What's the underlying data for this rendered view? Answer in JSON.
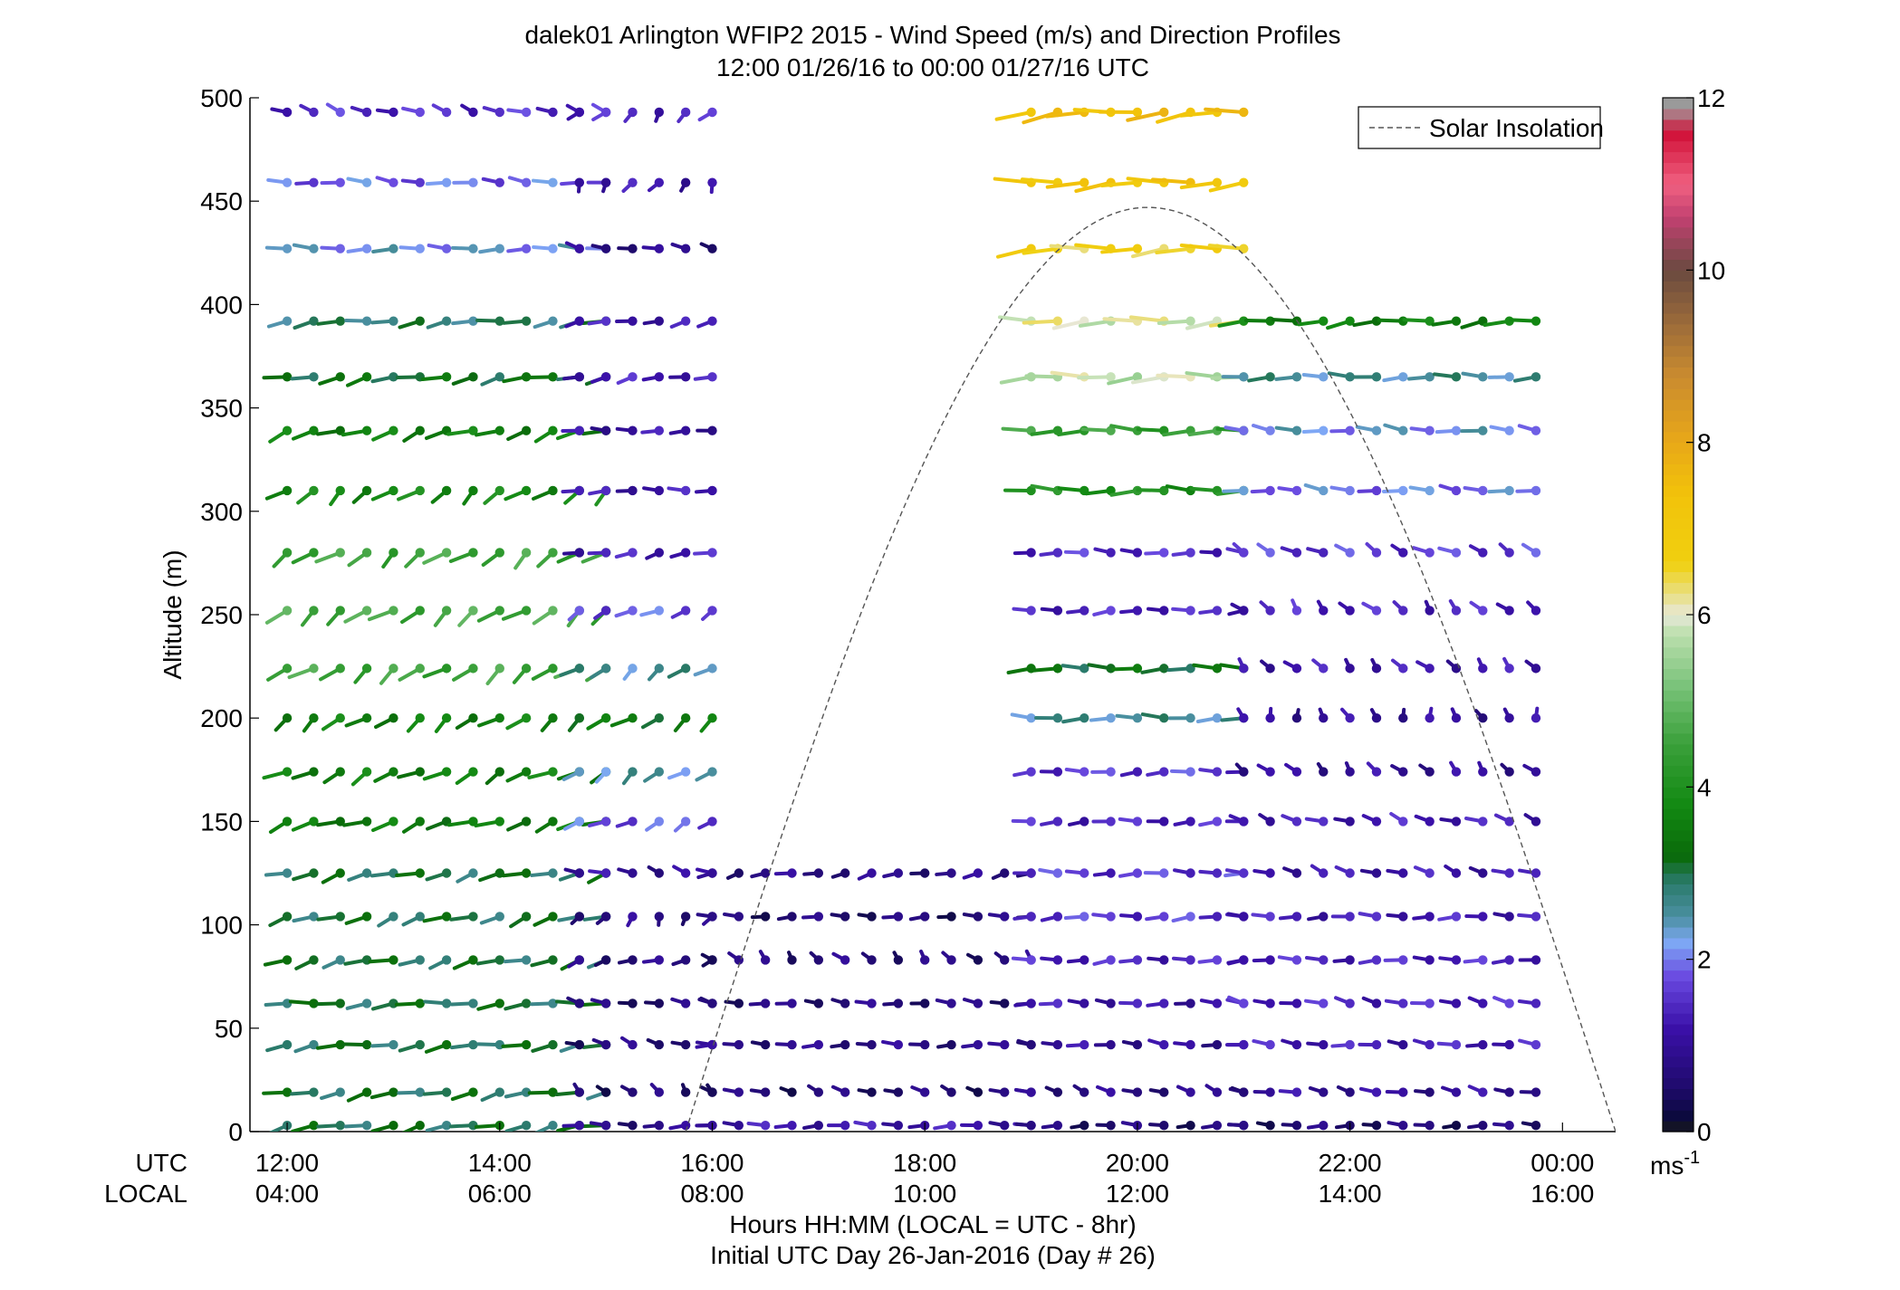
{
  "chart_data": {
    "type": "wind barb profile",
    "title": "dalek01 Arlington WFIP2 2015 - Wind Speed (m/s) and Direction Profiles",
    "subtitle": "12:00 01/26/16 to 00:00 01/27/16  UTC",
    "ylabel": "Altitude (m)",
    "ylim": [
      0,
      500
    ],
    "yticks": [
      "0",
      "50",
      "100",
      "150",
      "200",
      "250",
      "300",
      "350",
      "400",
      "450",
      "500"
    ],
    "x_row_utc_label": "UTC",
    "x_row_local_label": "LOCAL",
    "xticks_utc": [
      "12:00",
      "14:00",
      "16:00",
      "18:00",
      "20:00",
      "22:00",
      "00:00"
    ],
    "xticks_local": [
      "04:00",
      "06:00",
      "08:00",
      "10:00",
      "12:00",
      "14:00",
      "16:00"
    ],
    "xlabel": "Hours HH:MM  (LOCAL = UTC - 8hr)",
    "xlabel2": "Initial UTC Day 26-Jan-2016 (Day # 26)",
    "xlim_hours": [
      11.65,
      24.5
    ],
    "legend": {
      "entries": [
        "Solar Insolation"
      ],
      "placement": "top-right",
      "style": "dashed"
    },
    "colorbar": {
      "label": "ms",
      "label_exponent": "-1",
      "range": [
        0,
        12
      ],
      "ticks": [
        "0",
        "2",
        "4",
        "6",
        "8",
        "10",
        "12"
      ],
      "colors": [
        "#0a0a2a",
        "#2a0a5e",
        "#4b1fb8",
        "#6a5be8",
        "#7ea9f5",
        "#3f8f8a",
        "#128a12",
        "#1a7a1a",
        "#4fb04f",
        "#a8d8a0",
        "#e4e4c0",
        "#f0d020",
        "#e6a81a",
        "#a47838",
        "#7a5a48",
        "#b03060",
        "#f05070",
        "#d01030",
        "#a0a0a0"
      ]
    },
    "solar_insolation_curve": {
      "start_hour": 15.75,
      "peak_hour": 20.1,
      "peak_altitude": 447,
      "end_hour": 24.5
    },
    "altitudes": [
      3,
      19,
      42,
      62,
      83,
      104,
      125,
      150,
      174,
      200,
      224,
      252,
      280,
      310,
      339,
      365,
      392,
      427,
      459,
      493
    ],
    "series": [
      {
        "time_start_hour": 12.0,
        "time_end_hour": 15.12,
        "dt_hours": 0.25,
        "notes_levels_top": "morning block",
        "speed_by_alt": [
          3.0,
          3.0,
          3.0,
          3.0,
          3.0,
          3.0,
          3.0,
          3.5,
          3.6,
          3.6,
          4.5,
          4.6,
          4.5,
          3.8,
          3.6,
          3.2,
          2.8,
          2.2,
          1.9,
          1.5
        ],
        "dir_by_alt": [
          250,
          250,
          255,
          260,
          245,
          240,
          245,
          240,
          230,
          220,
          220,
          220,
          220,
          220,
          240,
          250,
          255,
          270,
          280,
          300
        ]
      },
      {
        "time_start_hour": 14.75,
        "time_end_hour": 16.0,
        "dt_hours": 0.25,
        "notes_levels_top": "late morning block",
        "speed_by_alt": [
          0.8,
          0.6,
          0.7,
          0.6,
          0.7,
          0.8,
          1.0,
          1.8,
          2.5,
          3.4,
          2.6,
          1.8,
          1.3,
          1.2,
          1.1,
          1.3,
          1.2,
          0.8,
          1.2,
          1.4
        ],
        "dir_by_alt": [
          270,
          330,
          300,
          290,
          240,
          200,
          300,
          230,
          220,
          220,
          220,
          230,
          250,
          270,
          270,
          250,
          250,
          290,
          200,
          210
        ]
      },
      {
        "time_start_hour": 16.0,
        "time_end_hour": 19.0,
        "dt_hours": 0.25,
        "notes_levels_top": "midday low-level block",
        "speed_by_alt": [
          1.2,
          0.6,
          0.8,
          0.7,
          0.7,
          0.6,
          0.8
        ],
        "dir_by_alt": [
          270,
          300,
          270,
          280,
          330,
          270,
          250
        ]
      },
      {
        "time_start_hour": 19.0,
        "time_end_hour": 21.0,
        "dt_hours": 0.25,
        "notes_levels_top": "afternoon block",
        "speed_by_alt": [
          0.6,
          0.8,
          1.0,
          1.2,
          1.4,
          1.6,
          1.6,
          1.4,
          1.6,
          2.6,
          3.2,
          1.4,
          1.5,
          4.0,
          4.4,
          5.8,
          6.0,
          6.6,
          7.2,
          7.4
        ],
        "dir_by_alt": [
          270,
          300,
          280,
          275,
          265,
          265,
          270,
          265,
          265,
          270,
          270,
          265,
          275,
          270,
          270,
          265,
          265,
          265,
          265,
          260
        ]
      },
      {
        "time_start_hour": 21.0,
        "time_end_hour": 23.9,
        "dt_hours": 0.25,
        "notes_levels_top": "late afternoon block",
        "speed_by_alt": [
          0.6,
          1.0,
          1.3,
          1.4,
          1.4,
          1.3,
          1.2,
          1.3,
          1.0,
          1.0,
          1.2,
          1.4,
          1.6,
          2.0,
          2.2,
          2.6,
          3.6
        ],
        "dir_by_alt": [
          270,
          290,
          280,
          290,
          270,
          270,
          300,
          300,
          330,
          350,
          330,
          330,
          310,
          280,
          280,
          270,
          260
        ]
      }
    ]
  }
}
